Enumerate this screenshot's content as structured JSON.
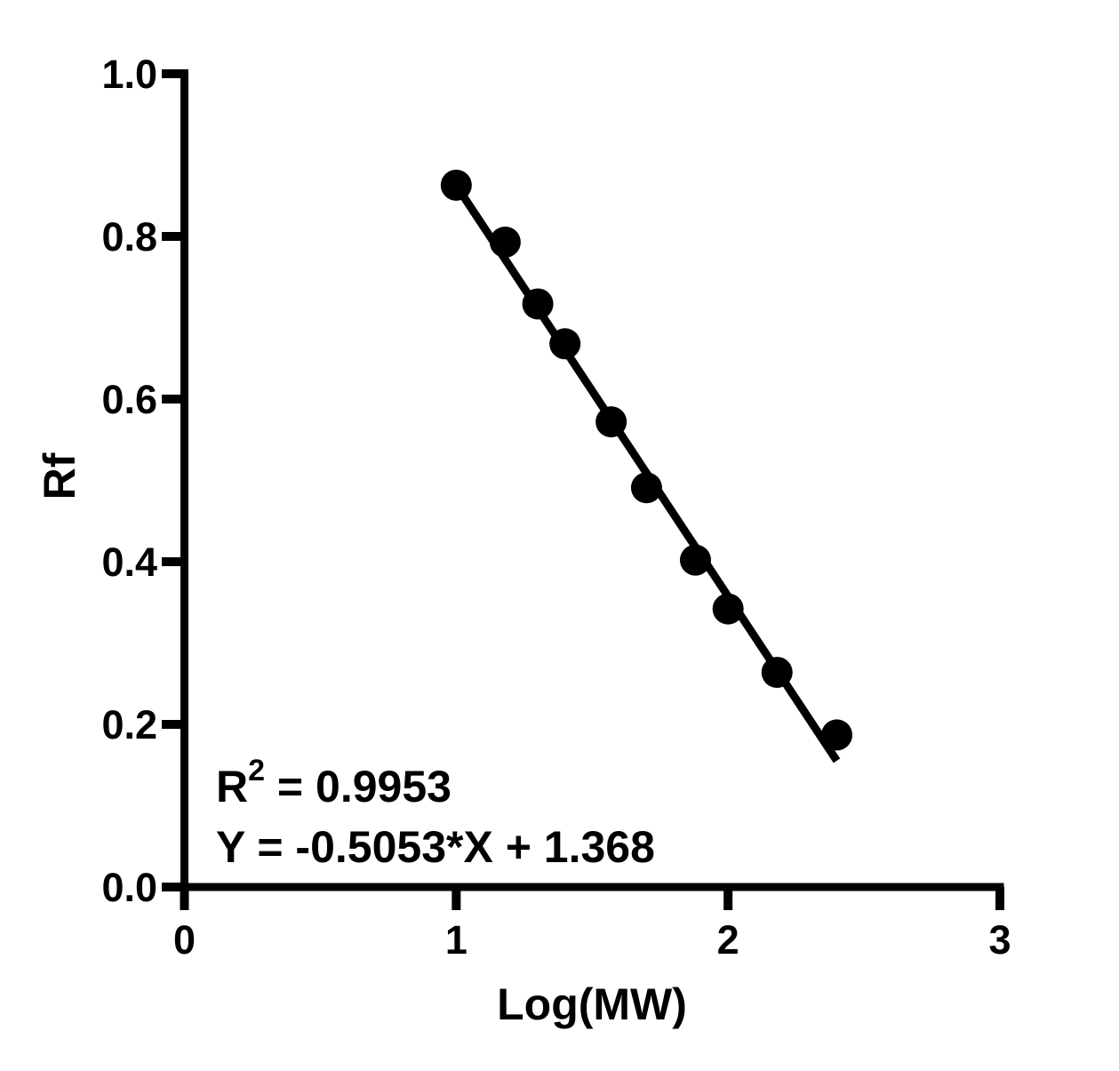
{
  "chart_data": {
    "type": "scatter",
    "title": "",
    "xlabel": "Log(MW)",
    "ylabel": "Rf",
    "xlim": [
      0,
      3
    ],
    "ylim": [
      0.0,
      1.0
    ],
    "x_ticks": [
      "0",
      "1",
      "2",
      "3"
    ],
    "x_tick_values": [
      0,
      1,
      2,
      3
    ],
    "y_ticks": [
      "0.0",
      "0.2",
      "0.4",
      "0.6",
      "0.8",
      "1.0"
    ],
    "y_tick_values": [
      0.0,
      0.2,
      0.4,
      0.6,
      0.8,
      1.0
    ],
    "grid": false,
    "legend": "none",
    "points": {
      "x": [
        1.0,
        1.18,
        1.3,
        1.4,
        1.57,
        1.7,
        1.88,
        2.0,
        2.18,
        2.4
      ],
      "y": [
        0.863,
        0.793,
        0.717,
        0.668,
        0.572,
        0.491,
        0.402,
        0.342,
        0.264,
        0.187
      ]
    },
    "fit_line": {
      "slope": -0.5053,
      "intercept": 1.368,
      "x_start": 1.0,
      "x_end": 2.4
    },
    "annotation": {
      "r_squared_base": "R",
      "r_squared_sup": "2",
      "r_squared_rest": " = 0.9953",
      "equation": "Y = -0.5053*X + 1.368"
    },
    "colors": {
      "marker": "#000000",
      "line": "#000000",
      "axis": "#000000",
      "text": "#000000",
      "background": "#ffffff"
    }
  }
}
